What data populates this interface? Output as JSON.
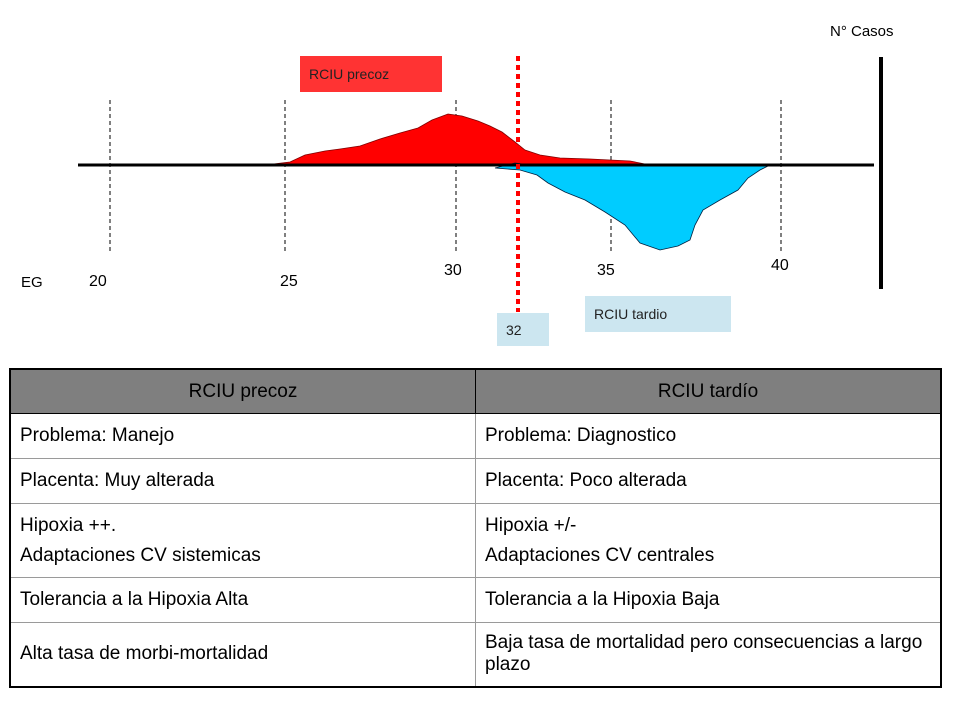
{
  "diagram": {
    "cases_label": "N° Casos",
    "axis_label": "EG",
    "ticks": [
      "20",
      "25",
      "30",
      "35",
      "40"
    ],
    "cutoff_label": "32",
    "early_label": "RCIU precoz",
    "late_label": "RCIU tardio",
    "colors": {
      "early_fill": "#ff0000",
      "late_fill": "#00ccff",
      "cutoff_line": "#ff0000",
      "early_box": "#ff3333",
      "late_box": "#cce6f0",
      "cutoff_box": "#cce6f0"
    }
  },
  "table": {
    "headers": [
      "RCIU precoz",
      "RCIU tardío"
    ],
    "rows": [
      [
        "Problema: Manejo",
        "Problema: Diagnostico"
      ],
      [
        "Placenta: Muy alterada",
        "Placenta: Poco alterada"
      ],
      [
        "Hipoxia ++.",
        "Hipoxia +/-"
      ],
      [
        "Adaptaciones CV sistemicas",
        "Adaptaciones CV centrales"
      ],
      [
        "Tolerancia a la Hipoxia Alta",
        "Tolerancia a la Hipoxia Baja"
      ],
      [
        "Alta tasa de morbi-mortalidad",
        "Baja tasa de mortalidad pero consecuencias a largo plazo"
      ]
    ],
    "header_color": "#7f7f7f"
  }
}
